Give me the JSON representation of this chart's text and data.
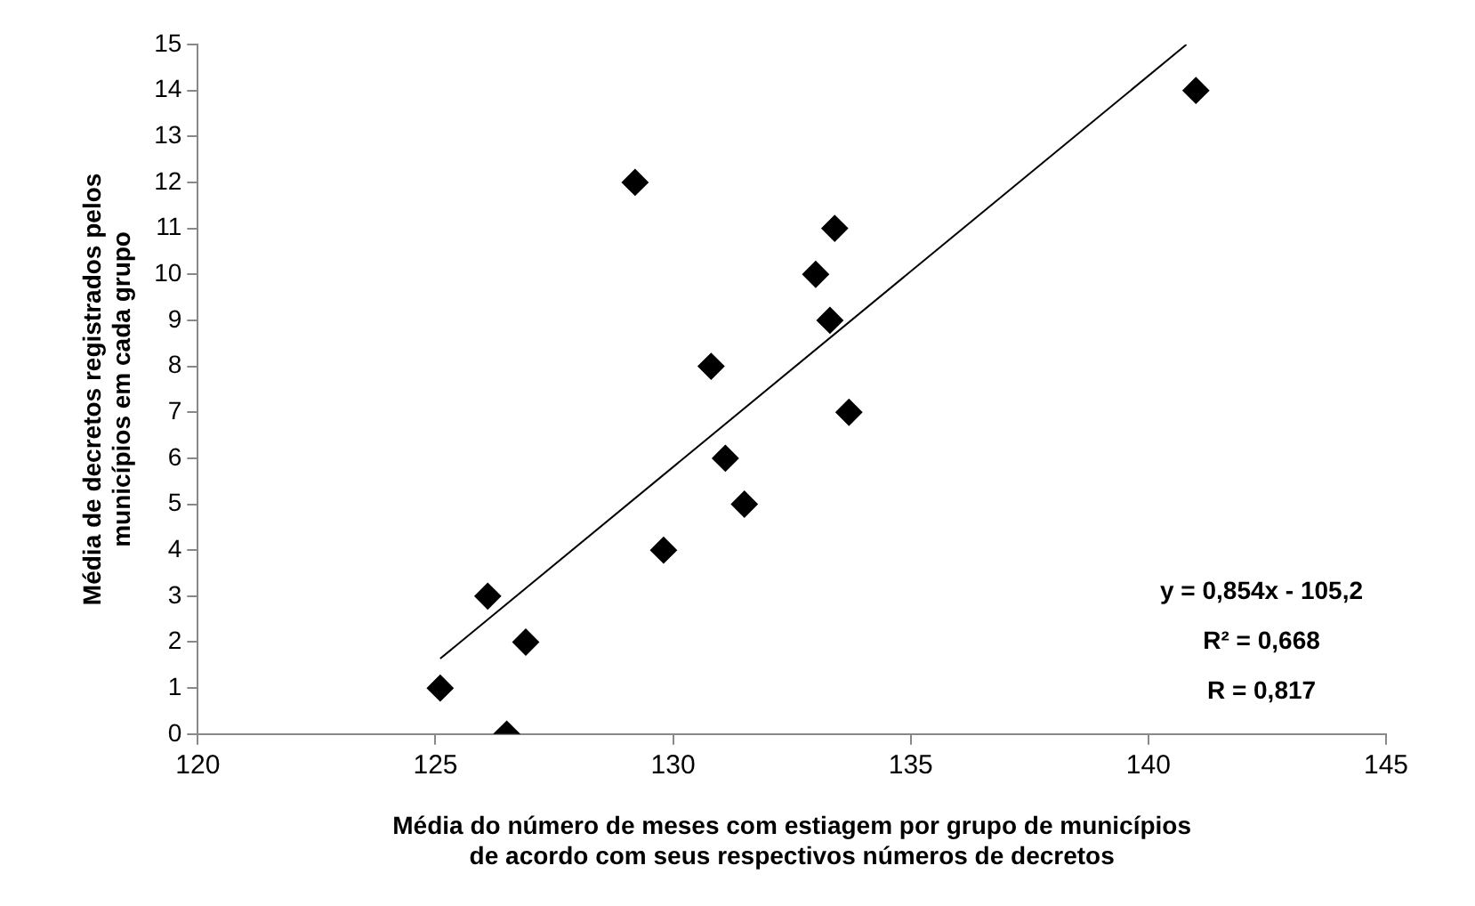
{
  "chart_data": {
    "type": "scatter",
    "xlabel": "Média do número de meses com estiagem por grupo de municípios\nde acordo com seus respectivos números de decretos",
    "ylabel": "Média de decretos registrados pelos\nmunicípios em cada grupo",
    "series": [
      {
        "type": "scatter",
        "color": "#000000",
        "marker": "diamond",
        "x": [
          125.1,
          126.1,
          126.5,
          126.9,
          129.2,
          129.8,
          130.8,
          131.1,
          131.5,
          133.0,
          133.3,
          133.4,
          133.7,
          141.0
        ],
        "values": [
          1,
          3,
          0,
          2,
          12,
          4,
          8,
          6,
          5,
          10,
          9,
          11,
          7,
          14
        ]
      },
      {
        "type": "line",
        "color": "#000000",
        "marker": "none",
        "line_style": "solid",
        "x": [
          125.1,
          140.8
        ],
        "values": [
          1.64,
          15.0
        ]
      }
    ],
    "xlim": [
      120,
      145
    ],
    "xticks": [
      120,
      125,
      130,
      135,
      140,
      145
    ],
    "ylim": [
      0,
      15
    ],
    "yticks": [
      0,
      1,
      2,
      3,
      4,
      5,
      6,
      7,
      8,
      9,
      10,
      11,
      12,
      13,
      14,
      15
    ],
    "grid": false,
    "legend": false,
    "annotations": [
      "y = 0,854x - 105,2",
      "R² = 0,668",
      "R = 0,817"
    ]
  }
}
